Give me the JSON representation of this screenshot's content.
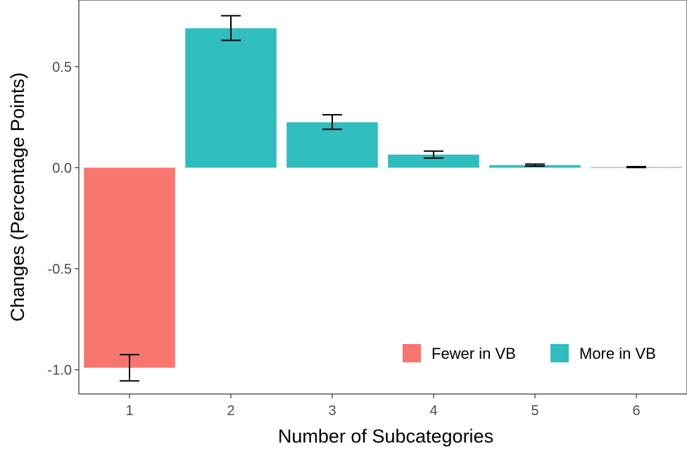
{
  "chart_data": {
    "type": "bar",
    "title": "",
    "xlabel": "Number of Subcategories",
    "ylabel": "Changes (Percentage Points)",
    "categories": [
      "1",
      "2",
      "3",
      "4",
      "5",
      "6"
    ],
    "values": [
      -0.99,
      0.69,
      0.225,
      0.065,
      0.013,
      0.003
    ],
    "error_low": [
      -1.055,
      0.63,
      0.19,
      0.048,
      0.008,
      0.001
    ],
    "error_high": [
      -0.925,
      0.752,
      0.262,
      0.082,
      0.018,
      0.005
    ],
    "ylim": [
      -1.12,
      0.83
    ],
    "yticks": [
      -1.0,
      -0.5,
      0.0,
      0.5
    ],
    "ytick_labels": [
      "-1.0",
      "-0.5",
      "0.0",
      "0.5"
    ],
    "grid": false,
    "legend_position": "bottom-right inside",
    "legend": [
      {
        "label": "Fewer in VB",
        "color": "#F8766D"
      },
      {
        "label": "More in VB",
        "color": "#2FBDBE"
      }
    ],
    "colors": {
      "negative": "#F8766D",
      "positive": "#2FBDBE"
    }
  }
}
